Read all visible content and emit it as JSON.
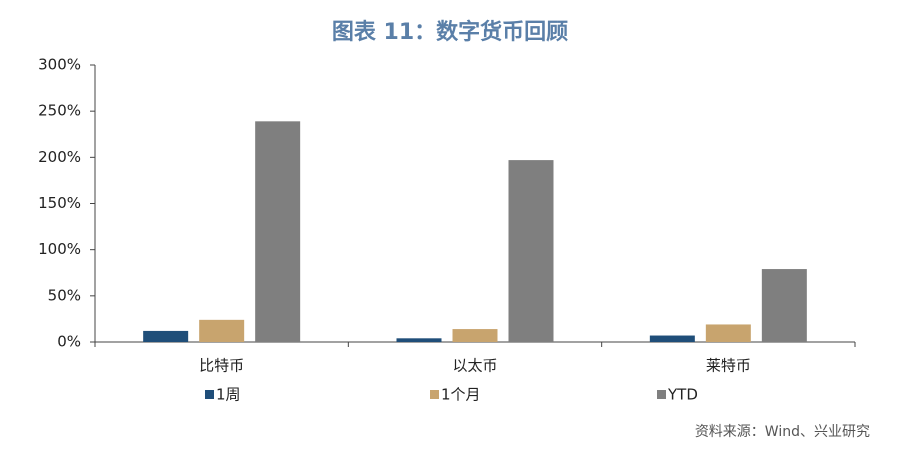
{
  "chart_data": {
    "type": "bar",
    "title": "图表 11：数字货币回顾",
    "categories": [
      "比特币",
      "以太币",
      "莱特币"
    ],
    "series": [
      {
        "name": "1周",
        "color": "#1f4e79",
        "values": [
          12,
          4,
          7
        ]
      },
      {
        "name": "1个月",
        "color": "#c8a46e",
        "values": [
          24,
          14,
          19
        ]
      },
      {
        "name": "YTD",
        "color": "#7f7f7f",
        "values": [
          239,
          197,
          79
        ]
      }
    ],
    "ylim": [
      0,
      300
    ],
    "yticks": [
      {
        "value": 0,
        "label": "0%"
      },
      {
        "value": 50,
        "label": "50%"
      },
      {
        "value": 100,
        "label": "100%"
      },
      {
        "value": 150,
        "label": "150%"
      },
      {
        "value": 200,
        "label": "200%"
      },
      {
        "value": 250,
        "label": "250%"
      },
      {
        "value": 300,
        "label": "300%"
      }
    ],
    "source": "资料来源：Wind、兴业研究"
  }
}
